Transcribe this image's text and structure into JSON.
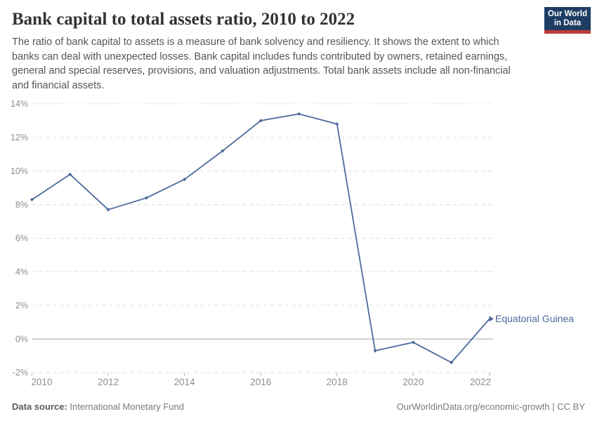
{
  "header": {
    "title": "Bank capital to total assets ratio, 2010 to 2022",
    "subtitle": "The ratio of bank capital to assets is a measure of bank solvency and resiliency. It shows the extent to which banks can deal with unexpected losses. Bank capital includes funds contributed by owners, retained earnings, general and special reserves, provisions, and valuation adjustments. Total bank assets include all non-financial and financial assets.",
    "logo_line1": "Our World",
    "logo_line2": "in Data",
    "logo_bg_color": "#1d3d63",
    "logo_bar_color": "#bf3b38"
  },
  "chart_data": {
    "type": "line",
    "title": "Bank capital to total assets ratio, 2010 to 2022",
    "x": [
      2010,
      2011,
      2012,
      2013,
      2014,
      2015,
      2016,
      2017,
      2018,
      2019,
      2020,
      2021,
      2022
    ],
    "series": [
      {
        "name": "Equatorial Guinea",
        "color": "#4c6a9c",
        "values": [
          8.3,
          9.8,
          7.7,
          8.4,
          9.5,
          11.2,
          13.0,
          13.4,
          12.8,
          -0.7,
          -0.2,
          -1.4,
          1.2
        ]
      }
    ],
    "xlabel": "",
    "ylabel": "",
    "xlim": [
      2010,
      2022
    ],
    "ylim": [
      -2,
      14
    ],
    "yticks": [
      -2,
      0,
      2,
      4,
      6,
      8,
      10,
      12,
      14
    ],
    "ytick_suffix": "%",
    "xticks": [
      2010,
      2012,
      2014,
      2016,
      2018,
      2020,
      2022
    ],
    "grid": "horizontal-dashed",
    "zero_line": true,
    "legend_position": "end-of-line-label",
    "entity_label": "Equatorial Guinea",
    "colors": {
      "line": "#4c6a9c",
      "grid": "#dcdcdc",
      "zero_line": "#a3a3a3",
      "tick": "#b8b8b8",
      "tick_text": "#8f8f8f"
    }
  },
  "footer": {
    "source_label": "Data source:",
    "source_value": "International Monetary Fund",
    "url": "OurWorldinData.org/economic-growth",
    "license_suffix": " | CC BY"
  }
}
